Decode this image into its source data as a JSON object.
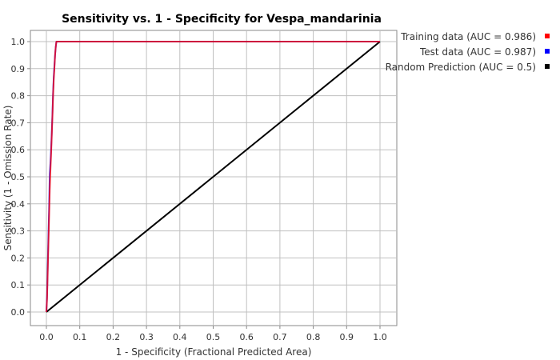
{
  "chart_data": {
    "type": "line",
    "title": "Sensitivity vs. 1 - Specificity for Vespa_mandarinia",
    "xlabel": "1 - Specificity  (Fractional Predicted Area)",
    "ylabel": "Sensitivity  (1 - Omission Rate)",
    "xlim": [
      0,
      1
    ],
    "ylim": [
      0,
      1
    ],
    "grid": true,
    "legend_position": "right",
    "x_ticks": [
      "0.0",
      "0.1",
      "0.2",
      "0.3",
      "0.4",
      "0.5",
      "0.6",
      "0.7",
      "0.8",
      "0.9",
      "1.0"
    ],
    "y_ticks": [
      "0.0",
      "0.1",
      "0.2",
      "0.3",
      "0.4",
      "0.5",
      "0.6",
      "0.7",
      "0.8",
      "0.9",
      "1.0"
    ],
    "series": [
      {
        "name": "Training data (AUC = 0.986)",
        "color": "#ff0000",
        "x": [
          0.0,
          0.002,
          0.004,
          0.006,
          0.008,
          0.01,
          0.012,
          0.014,
          0.016,
          0.018,
          0.02,
          0.022,
          0.024,
          0.026,
          0.028,
          0.03,
          0.5,
          1.0
        ],
        "y": [
          0.0,
          0.05,
          0.15,
          0.25,
          0.35,
          0.45,
          0.52,
          0.58,
          0.65,
          0.72,
          0.8,
          0.86,
          0.9,
          0.95,
          0.98,
          1.0,
          1.0,
          1.0
        ]
      },
      {
        "name": "Test data (AUC = 0.987)",
        "color": "#0000ff",
        "x": [
          0.0,
          0.002,
          0.004,
          0.006,
          0.008,
          0.01,
          0.012,
          0.014,
          0.016,
          0.018,
          0.02,
          0.022,
          0.024,
          0.026,
          0.028,
          0.03,
          0.5,
          1.0
        ],
        "y": [
          0.0,
          0.06,
          0.17,
          0.28,
          0.38,
          0.51,
          0.55,
          0.6,
          0.66,
          0.73,
          0.81,
          0.87,
          0.91,
          0.95,
          0.98,
          1.0,
          1.0,
          1.0
        ]
      },
      {
        "name": "Random Prediction (AUC = 0.5)",
        "color": "#000000",
        "x": [
          0.0,
          1.0
        ],
        "y": [
          0.0,
          1.0
        ]
      }
    ]
  }
}
